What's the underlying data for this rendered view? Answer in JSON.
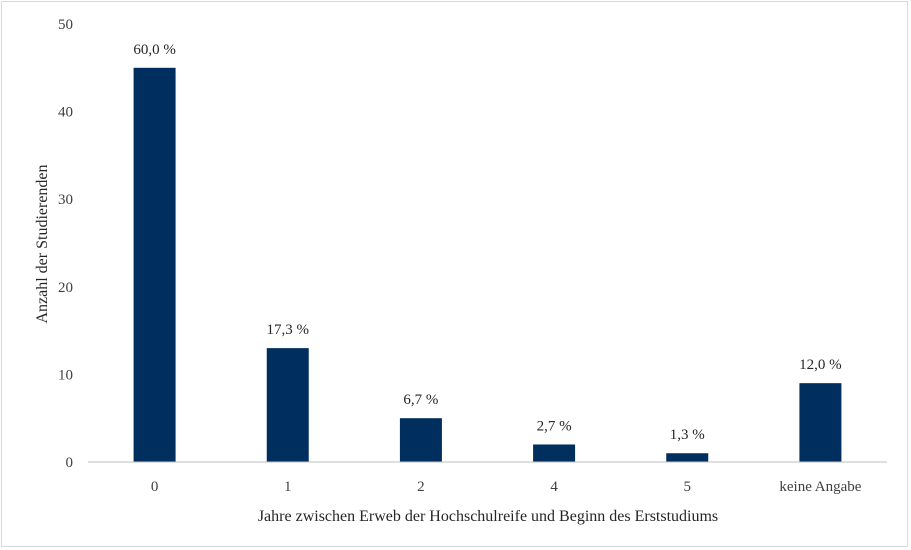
{
  "chart_data": {
    "type": "bar",
    "categories": [
      "0",
      "1",
      "2",
      "4",
      "5",
      "keine Angabe"
    ],
    "values": [
      45,
      13,
      5,
      2,
      1,
      9
    ],
    "data_labels": [
      "60,0 %",
      "17,3 %",
      "6,7 %",
      "2,7 %",
      "1,3 %",
      "12,0 %"
    ],
    "title": "",
    "xlabel": "Jahre zwischen Erweb der Hochschulreife und Beginn des Erststudiums",
    "ylabel": "Anzahl der Studierenden",
    "ylim": [
      0,
      50
    ],
    "yticks": [
      "0",
      "10",
      "20",
      "30",
      "40",
      "50"
    ],
    "grid": false,
    "bar_color": "#002f5f",
    "axis_color": "#bfbfbf"
  }
}
